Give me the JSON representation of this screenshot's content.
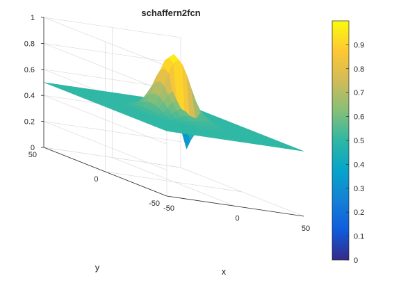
{
  "chart_data": {
    "type": "surface",
    "title": "schaffern2fcn",
    "xlabel": "x",
    "ylabel": "y",
    "zlabel": "",
    "xlim": [
      -50,
      50
    ],
    "ylim": [
      -50,
      50
    ],
    "zlim": [
      0,
      1
    ],
    "x_ticks": [
      "-50",
      "0",
      "50"
    ],
    "y_ticks": [
      "50",
      "0",
      "-50"
    ],
    "z_ticks": [
      "0",
      "0.2",
      "0.4",
      "0.6",
      "0.8",
      "1"
    ],
    "colorbar": {
      "min": 0,
      "max": 1,
      "ticks": [
        "0",
        "0.1",
        "0.2",
        "0.3",
        "0.4",
        "0.5",
        "0.6",
        "0.7",
        "0.8",
        "0.9"
      ]
    },
    "colormap": "parula",
    "grid": true,
    "surface_samples": {
      "description_values_only": "z values of the surface sampled along the x axis through y=0",
      "x": [
        -50,
        -40,
        -30,
        -20,
        -10,
        0,
        10,
        20,
        30,
        40,
        50
      ],
      "z": [
        0.5,
        0.5,
        0.5,
        0.52,
        0.7,
        0.98,
        0.7,
        0.52,
        0.5,
        0.5,
        0.5
      ]
    }
  }
}
